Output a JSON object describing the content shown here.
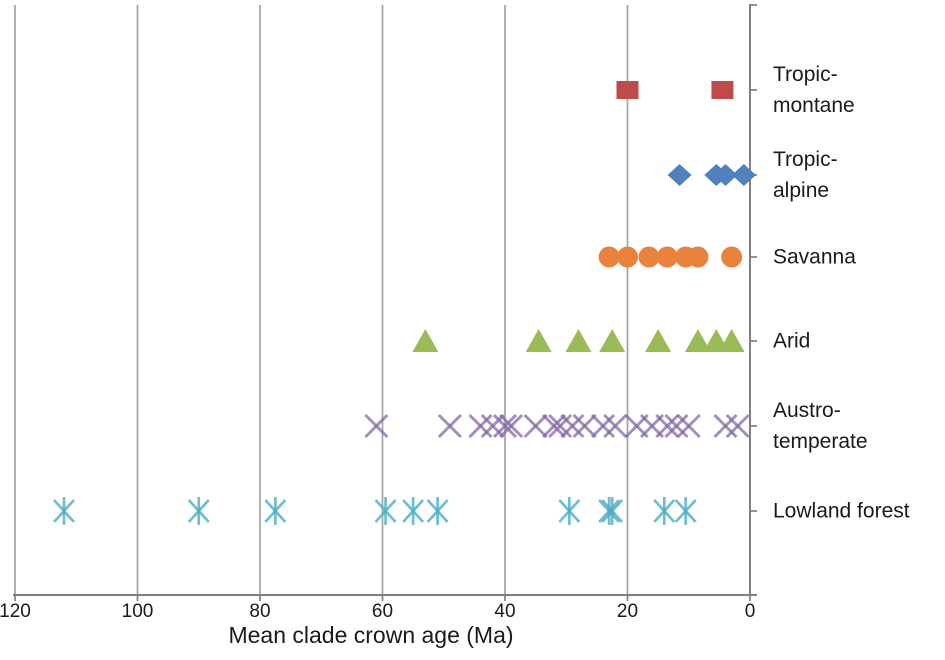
{
  "chart_data": {
    "type": "scatter",
    "title": "",
    "xlabel": "Mean clade crown age (Ma)",
    "ylabel": "",
    "x_axis": {
      "min": 0,
      "max": 120,
      "reversed": true,
      "tick_interval": 20,
      "ticks": [
        120,
        100,
        80,
        60,
        40,
        20,
        0
      ]
    },
    "grid": "vertical-gridlines-only",
    "legend_position": "none",
    "axis_color": "#7f7f7f",
    "gridline_color": "#a3a3a3",
    "series": [
      {
        "name": "Tropic-montane",
        "label_lines": [
          "Tropic-",
          "montane"
        ],
        "marker": "square",
        "color": "#be4b48",
        "values": [
          20,
          4.5
        ]
      },
      {
        "name": "Tropic-alpine",
        "label_lines": [
          "Tropic-",
          "alpine"
        ],
        "marker": "diamond",
        "color": "#4f81bd",
        "values": [
          11.5,
          5.5,
          4,
          1
        ]
      },
      {
        "name": "Savanna",
        "label_lines": [
          "Savanna"
        ],
        "marker": "circle",
        "color": "#e8823c",
        "values": [
          23,
          20,
          16.5,
          13.5,
          10.5,
          8.5,
          3
        ]
      },
      {
        "name": "Arid",
        "label_lines": [
          "Arid"
        ],
        "marker": "triangle",
        "color": "#9bbb59",
        "values": [
          53,
          34.5,
          28,
          22.5,
          15,
          8.5,
          5.5,
          3
        ]
      },
      {
        "name": "Austro-temperate",
        "label_lines": [
          "Austro-",
          "temperate"
        ],
        "marker": "x",
        "color": "#8064a2",
        "values": [
          61,
          49,
          44,
          42,
          40,
          39,
          35,
          32,
          31,
          29,
          27,
          24,
          22,
          18.5,
          16,
          13.5,
          12,
          10,
          4,
          2
        ]
      },
      {
        "name": "Lowland forest",
        "label_lines": [
          "Lowland forest"
        ],
        "marker": "asterisk",
        "color": "#4bacc6",
        "values": [
          112,
          90,
          77.5,
          59.5,
          55,
          51,
          29.5,
          23,
          22.5,
          14,
          10.5
        ]
      }
    ]
  }
}
